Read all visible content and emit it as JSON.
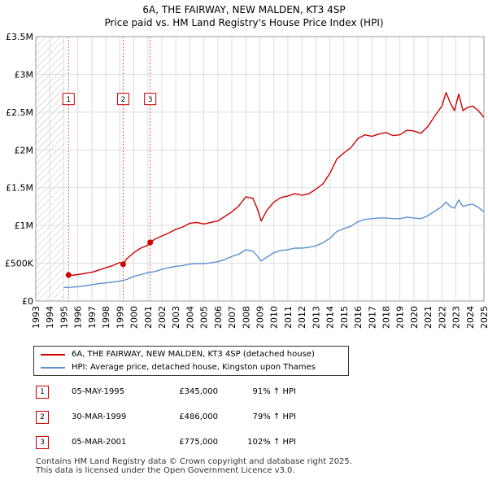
{
  "chart_data": {
    "type": "line",
    "title": "6A, THE FAIRWAY, NEW MALDEN, KT3 4SP",
    "subtitle": "Price paid vs. HM Land Registry's House Price Index (HPI)",
    "y_tick_labels": [
      "£0",
      "£500K",
      "£1M",
      "£1.5M",
      "£2M",
      "£2.5M",
      "£3M",
      "£3.5M"
    ],
    "y_ticks": [
      0,
      500000,
      1000000,
      1500000,
      2000000,
      2500000,
      3000000,
      3500000
    ],
    "ylim": [
      0,
      3500000
    ],
    "xlim": [
      1993,
      2025
    ],
    "x_ticks": [
      1993,
      1994,
      1995,
      1996,
      1997,
      1998,
      1999,
      2000,
      2001,
      2002,
      2003,
      2004,
      2005,
      2006,
      2007,
      2008,
      2009,
      2010,
      2011,
      2012,
      2013,
      2014,
      2015,
      2016,
      2017,
      2018,
      2019,
      2020,
      2021,
      2022,
      2023,
      2024,
      2025
    ],
    "hatch_until": 1995.0,
    "grid": true,
    "series": [
      {
        "name": "6A, THE FAIRWAY, NEW MALDEN, KT3 4SP (detached house)",
        "color": "#cc0000",
        "x": [
          1995.34,
          1995.5,
          1996,
          1996.5,
          1997,
          1997.5,
          1998,
          1998.5,
          1999.0,
          1999.24,
          1999.5,
          2000,
          2000.5,
          2001.0,
          2001.17,
          2001.5,
          2002,
          2002.5,
          2003,
          2003.5,
          2004,
          2004.5,
          2005,
          2005.5,
          2006,
          2006.5,
          2007,
          2007.5,
          2008,
          2008.5,
          2008.8,
          2009.1,
          2009.5,
          2010,
          2010.5,
          2011,
          2011.5,
          2012,
          2012.5,
          2013,
          2013.5,
          2014,
          2014.5,
          2015,
          2015.5,
          2016,
          2016.5,
          2017,
          2017.5,
          2018,
          2018.5,
          2019,
          2019.5,
          2020,
          2020.5,
          2021,
          2021.5,
          2022,
          2022.3,
          2022.6,
          2022.9,
          2023.2,
          2023.5,
          2023.8,
          2024.2,
          2024.6,
          2025.0
        ],
        "values": [
          345000,
          340000,
          350000,
          365000,
          380000,
          410000,
          440000,
          470000,
          510000,
          486000,
          560000,
          640000,
          700000,
          740000,
          775000,
          820000,
          860000,
          900000,
          950000,
          980000,
          1030000,
          1040000,
          1020000,
          1040000,
          1060000,
          1120000,
          1180000,
          1260000,
          1380000,
          1360000,
          1230000,
          1060000,
          1200000,
          1310000,
          1370000,
          1390000,
          1420000,
          1400000,
          1420000,
          1480000,
          1550000,
          1690000,
          1880000,
          1960000,
          2030000,
          2150000,
          2200000,
          2180000,
          2210000,
          2230000,
          2190000,
          2200000,
          2260000,
          2250000,
          2220000,
          2310000,
          2450000,
          2580000,
          2760000,
          2620000,
          2520000,
          2740000,
          2520000,
          2560000,
          2580000,
          2520000,
          2430000
        ]
      },
      {
        "name": "HPI: Average price, detached house, Kingston upon Thames",
        "color": "#5b8fd0",
        "x": [
          1995.0,
          1995.5,
          1996,
          1996.5,
          1997,
          1997.5,
          1998,
          1998.5,
          1999,
          1999.5,
          2000,
          2000.5,
          2001,
          2001.5,
          2002,
          2002.5,
          2003,
          2003.5,
          2004,
          2004.5,
          2005,
          2005.5,
          2006,
          2006.5,
          2007,
          2007.5,
          2008,
          2008.5,
          2008.8,
          2009.1,
          2009.5,
          2010,
          2010.5,
          2011,
          2011.5,
          2012,
          2012.5,
          2013,
          2013.5,
          2014,
          2014.5,
          2015,
          2015.5,
          2016,
          2016.5,
          2017,
          2017.5,
          2018,
          2018.5,
          2019,
          2019.5,
          2020,
          2020.5,
          2021,
          2021.5,
          2022,
          2022.3,
          2022.6,
          2022.9,
          2023.2,
          2023.5,
          2023.8,
          2024.2,
          2024.6,
          2025.0
        ],
        "values": [
          180000,
          182000,
          190000,
          200000,
          215000,
          230000,
          240000,
          250000,
          265000,
          285000,
          325000,
          350000,
          375000,
          390000,
          420000,
          440000,
          460000,
          470000,
          490000,
          495000,
          495000,
          505000,
          520000,
          550000,
          590000,
          620000,
          680000,
          660000,
          600000,
          530000,
          580000,
          640000,
          670000,
          680000,
          700000,
          700000,
          710000,
          730000,
          770000,
          830000,
          920000,
          960000,
          990000,
          1050000,
          1080000,
          1090000,
          1100000,
          1100000,
          1090000,
          1090000,
          1110000,
          1100000,
          1090000,
          1130000,
          1190000,
          1250000,
          1310000,
          1250000,
          1230000,
          1340000,
          1250000,
          1270000,
          1280000,
          1240000,
          1180000
        ]
      }
    ],
    "sales": [
      {
        "label": "1",
        "year": 1995.34,
        "price": 345000
      },
      {
        "label": "2",
        "year": 1999.24,
        "price": 486000
      },
      {
        "label": "3",
        "year": 2001.17,
        "price": 775000
      }
    ]
  },
  "legend": {
    "property": "6A, THE FAIRWAY, NEW MALDEN, KT3 4SP (detached house)",
    "hpi": "HPI: Average price, detached house, Kingston upon Thames"
  },
  "transactions": [
    {
      "num": "1",
      "date": "05-MAY-1995",
      "price": "£345,000",
      "hpi": "91% ↑ HPI"
    },
    {
      "num": "2",
      "date": "30-MAR-1999",
      "price": "£486,000",
      "hpi": "79% ↑ HPI"
    },
    {
      "num": "3",
      "date": "05-MAR-2001",
      "price": "£775,000",
      "hpi": "102% ↑ HPI"
    }
  ],
  "footer": {
    "line1": "Contains HM Land Registry data © Crown copyright and database right 2025.",
    "line2": "This data is licensed under the Open Government Licence v3.0."
  },
  "colors": {
    "property": "#cc0000",
    "hpi": "#5b8fd0",
    "grid": "#dddddd",
    "hatch": "#bbbbbb"
  }
}
